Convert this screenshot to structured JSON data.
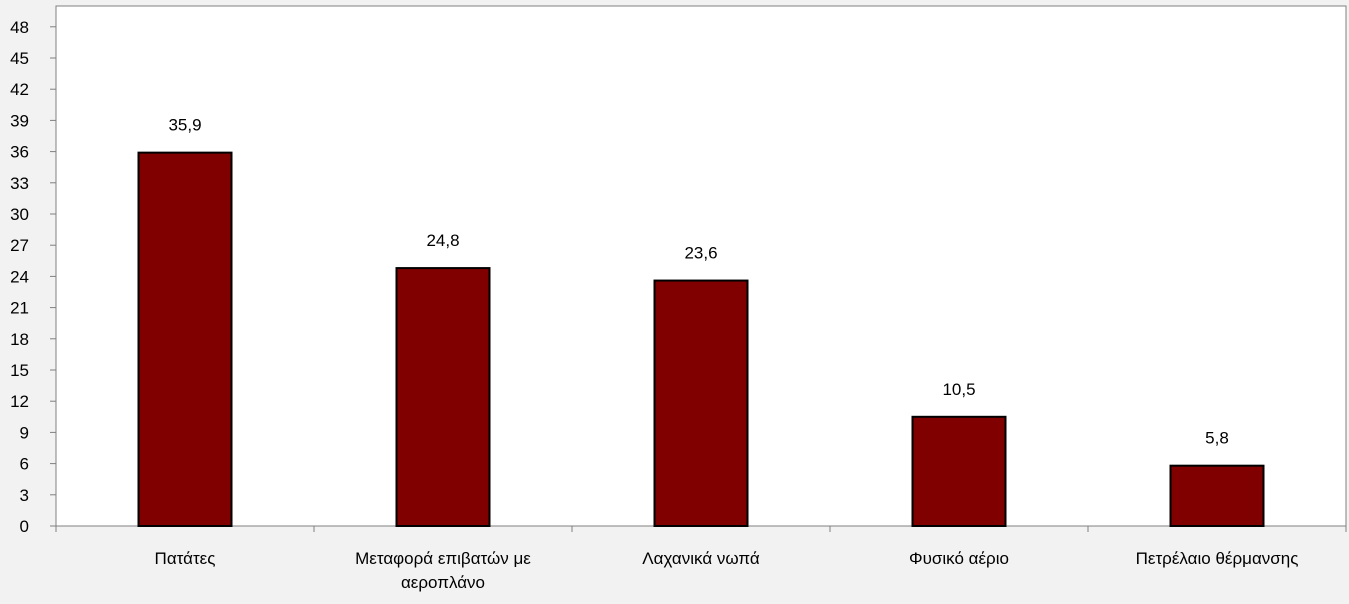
{
  "chart_data": {
    "type": "bar",
    "categories": [
      "Πατάτες",
      "Μεταφορά επιβατών με αεροπλάνο",
      "Λαχανικά νωπά",
      "Φυσικό αέριο",
      "Πετρέλαιο θέρμανσης"
    ],
    "category_lines": [
      [
        "Πατάτες"
      ],
      [
        "Μεταφορά επιβατών με",
        "αεροπλάνο"
      ],
      [
        "Λαχανικά νωπά"
      ],
      [
        "Φυσικό αέριο"
      ],
      [
        "Πετρέλαιο θέρμανσης"
      ]
    ],
    "values": [
      35.9,
      24.8,
      23.6,
      10.5,
      5.8
    ],
    "data_labels": [
      "35,9",
      "24,8",
      "23,6",
      "10,5",
      "5,8"
    ],
    "yticks": [
      0,
      3,
      6,
      9,
      12,
      15,
      18,
      21,
      24,
      27,
      30,
      33,
      36,
      39,
      42,
      45,
      48
    ],
    "ylim": [
      0,
      50
    ],
    "title": "",
    "xlabel": "",
    "ylabel": "",
    "grid": false,
    "legend": "none",
    "colors": {
      "bar_fill": "#800000",
      "bar_stroke": "#000000",
      "background": "#f2f2f2",
      "plot_area": "#ffffff",
      "axis": "#808080"
    }
  }
}
